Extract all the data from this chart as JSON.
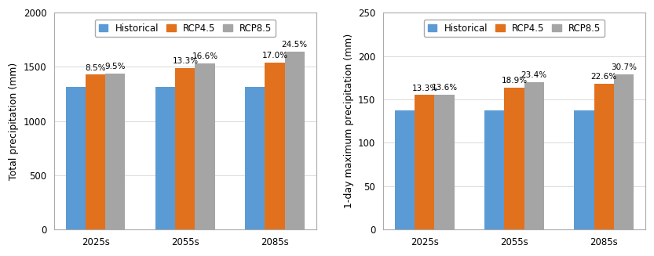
{
  "chart_a": {
    "ylabel": "Total precipitation (mm)",
    "categories": [
      "2025s",
      "2055s",
      "2085s"
    ],
    "historical": [
      1315,
      1315,
      1318
    ],
    "rcp45": [
      1427,
      1490,
      1542
    ],
    "rcp85": [
      1440,
      1533,
      1640
    ],
    "labels_rcp45": [
      "8.5%",
      "13.3%",
      "17.0%"
    ],
    "labels_rcp85": [
      "9.5%",
      "16.6%",
      "24.5%"
    ],
    "ylim": [
      0,
      2000
    ],
    "yticks": [
      0,
      500,
      1000,
      1500,
      2000
    ]
  },
  "chart_b": {
    "ylabel": "1-day maximum precipitation (mm)",
    "categories": [
      "2025s",
      "2055s",
      "2085s"
    ],
    "historical": [
      137,
      137.5,
      137
    ],
    "rcp45": [
      155.2,
      163.4,
      168.0
    ],
    "rcp85": [
      155.6,
      169.7,
      179.1
    ],
    "labels_rcp45": [
      "13.3%",
      "18.9%",
      "22.6%"
    ],
    "labels_rcp85": [
      "13.6%",
      "23.4%",
      "30.7%"
    ],
    "ylim": [
      0,
      250
    ],
    "yticks": [
      0,
      50,
      100,
      150,
      200,
      250
    ]
  },
  "colors": {
    "historical": "#5B9BD5",
    "rcp45": "#E2711D",
    "rcp85": "#A5A5A5"
  },
  "legend_labels": [
    "Historical",
    "RCP4.5",
    "RCP8.5"
  ],
  "bar_width": 0.22,
  "label_fontsize": 7.5,
  "axis_fontsize": 9,
  "tick_fontsize": 8.5,
  "legend_fontsize": 8.5
}
